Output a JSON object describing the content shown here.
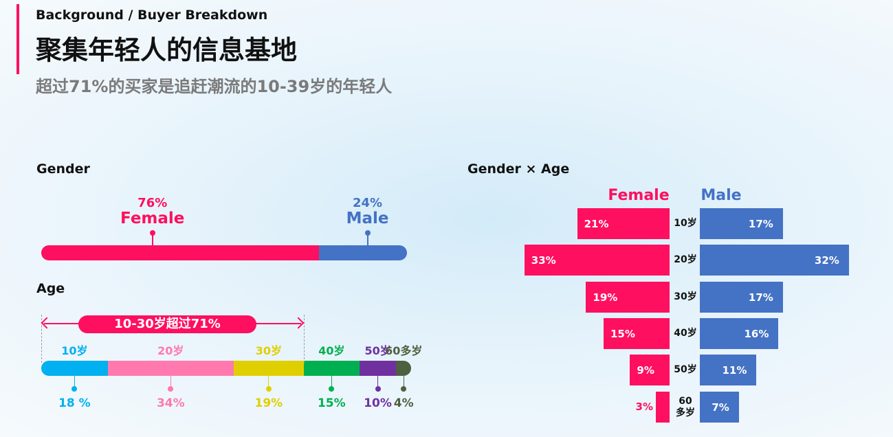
{
  "header": {
    "kicker": "Background / Buyer Breakdown",
    "title": "聚集年轻人的信息基地",
    "subtitle": "超过71%的买家是追赶潮流的10-39岁的年轻人"
  },
  "colors": {
    "female": "#ff0f5f",
    "male": "#4472c4"
  },
  "chart_data": [
    {
      "type": "bar",
      "title": "Gender",
      "orientation": "horizontal-stacked",
      "series": [
        {
          "name": "Female",
          "value": 76,
          "label": "76%",
          "color": "#ff0f5f"
        },
        {
          "name": "Male",
          "value": 24,
          "label": "24%",
          "color": "#4472c4"
        }
      ]
    },
    {
      "type": "bar",
      "title": "Age",
      "orientation": "horizontal-stacked",
      "categories": [
        "10岁",
        "20岁",
        "30岁",
        "40岁",
        "50岁",
        "60多岁"
      ],
      "values": [
        18,
        34,
        19,
        15,
        10,
        4
      ],
      "labels": [
        "18 %",
        "34%",
        "19%",
        "15%",
        "10%",
        "4%"
      ],
      "colors": [
        "#00b0f0",
        "#ff79ae",
        "#e0cf00",
        "#00b050",
        "#7030a0",
        "#4f6040"
      ],
      "annotation": "10-30岁超过71%"
    },
    {
      "type": "bar",
      "title": "Gender × Age",
      "orientation": "population-pyramid",
      "categories": [
        "10岁",
        "20岁",
        "30岁",
        "40岁",
        "50岁",
        "60多岁"
      ],
      "category_labels": [
        "10岁",
        "20岁",
        "30岁",
        "40岁",
        "50岁",
        "60\n多岁"
      ],
      "series": [
        {
          "name": "Female",
          "values": [
            21,
            33,
            19,
            15,
            9,
            3
          ]
        },
        {
          "name": "Male",
          "values": [
            17,
            32,
            17,
            16,
            11,
            7
          ]
        }
      ]
    }
  ]
}
